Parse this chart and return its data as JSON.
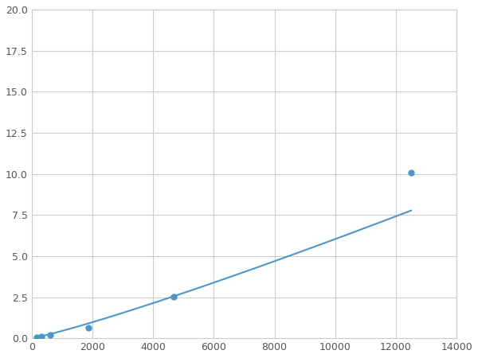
{
  "x_data": [
    156,
    313,
    625,
    1875,
    4688,
    12500
  ],
  "y_data": [
    0.07,
    0.13,
    0.2,
    0.65,
    2.55,
    10.1
  ],
  "line_color": "#4e96c8",
  "marker_color": "#4e96c8",
  "marker_size": 5,
  "xlim": [
    0,
    14000
  ],
  "ylim": [
    0,
    20
  ],
  "xticks": [
    0,
    2000,
    4000,
    6000,
    8000,
    10000,
    12000,
    14000
  ],
  "yticks": [
    0.0,
    2.5,
    5.0,
    7.5,
    10.0,
    12.5,
    15.0,
    17.5,
    20.0
  ],
  "grid_color": "#cccccc",
  "background_color": "#ffffff",
  "linewidth": 1.5
}
